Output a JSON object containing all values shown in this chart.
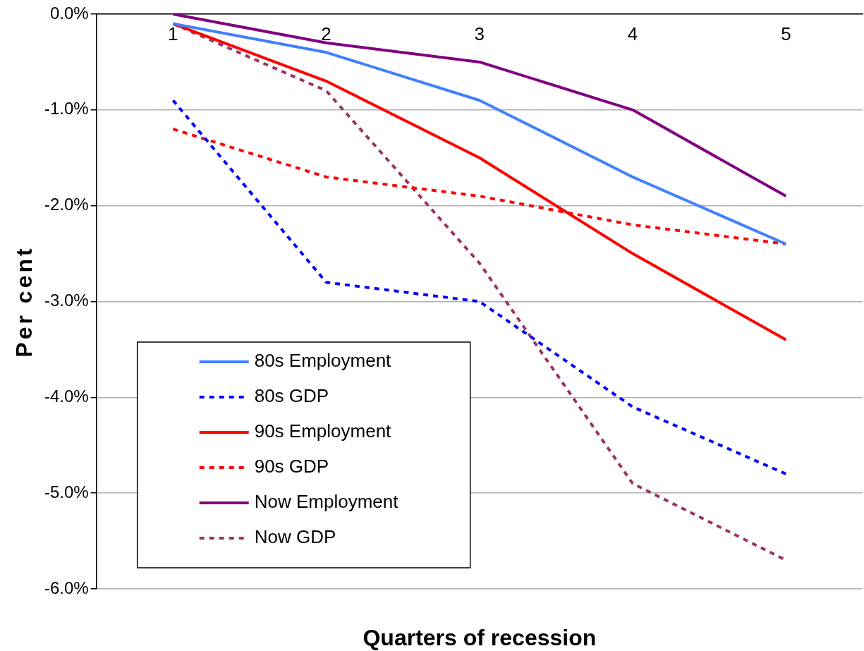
{
  "chart_data": {
    "type": "line",
    "xlabel": "Quarters of recession",
    "ylabel": "Per cent",
    "categories": [
      "1",
      "2",
      "3",
      "4",
      "5"
    ],
    "series": [
      {
        "name": "80s Employment",
        "color": "#4080ff",
        "line_style": "solid",
        "values": [
          -0.1,
          -0.4,
          -0.9,
          -1.7,
          -2.4
        ]
      },
      {
        "name": "80s GDP",
        "color": "#0000ff",
        "line_style": "dashed",
        "values": [
          -0.9,
          -2.8,
          -3.0,
          -4.1,
          -4.8
        ]
      },
      {
        "name": "90s Employment",
        "color": "#ff0000",
        "line_style": "solid",
        "values": [
          -0.1,
          -0.7,
          -1.5,
          -2.5,
          -3.4
        ]
      },
      {
        "name": "90s GDP",
        "color": "#ff0000",
        "line_style": "dashed",
        "values": [
          -1.2,
          -1.7,
          -1.9,
          -2.2,
          -2.4
        ]
      },
      {
        "name": "Now Employment",
        "color": "#800080",
        "line_style": "solid",
        "values": [
          0.0,
          -0.3,
          -0.5,
          -1.0,
          -1.9
        ]
      },
      {
        "name": "Now GDP",
        "color": "#993366",
        "line_style": "dashed",
        "values": [
          -0.1,
          -0.8,
          -2.6,
          -4.9,
          -5.7
        ]
      }
    ],
    "ylim": [
      -6,
      0
    ],
    "yticks": [
      {
        "value": -6,
        "label": "-6.0%"
      },
      {
        "value": -5,
        "label": "-5.0%"
      },
      {
        "value": -4,
        "label": "-4.0%"
      },
      {
        "value": -3,
        "label": "-3.0%"
      },
      {
        "value": -2,
        "label": "-2.0%"
      },
      {
        "value": -1,
        "label": "-1.0%"
      },
      {
        "value": 0,
        "label": "0.0%"
      }
    ],
    "grid": "y",
    "legend": "bottom left",
    "marker": "none"
  }
}
